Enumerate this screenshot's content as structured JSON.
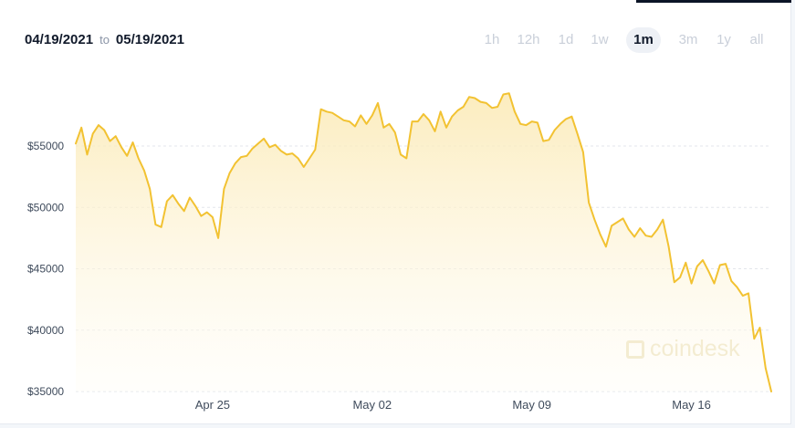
{
  "header": {
    "start_date": "04/19/2021",
    "to_label": "to",
    "end_date": "05/19/2021"
  },
  "timeframes": [
    {
      "label": "1h",
      "active": false
    },
    {
      "label": "12h",
      "active": false
    },
    {
      "label": "1d",
      "active": false
    },
    {
      "label": "1w",
      "active": false
    },
    {
      "label": "1m",
      "active": true
    },
    {
      "label": "3m",
      "active": false
    },
    {
      "label": "1y",
      "active": false
    },
    {
      "label": "all",
      "active": false
    }
  ],
  "watermark": "coindesk",
  "colors": {
    "line": "#f2c232",
    "fill_top": "#fbe9b3",
    "fill_bottom": "#fffdf6",
    "grid": "#e3e6eb"
  },
  "chart_data": {
    "type": "area",
    "title": "",
    "xlabel": "",
    "ylabel": "",
    "x_range": [
      "2021-04-19",
      "2021-05-19"
    ],
    "ylim": [
      35000,
      60000
    ],
    "y_ticks": [
      35000,
      40000,
      45000,
      50000,
      55000
    ],
    "y_tick_labels": [
      "$35000",
      "$40000",
      "$45000",
      "$50000",
      "$55000"
    ],
    "x_ticks": [
      {
        "date": "2021-04-25",
        "label": "Apr 25"
      },
      {
        "date": "2021-05-02",
        "label": "May 02"
      },
      {
        "date": "2021-05-09",
        "label": "May 09"
      },
      {
        "date": "2021-05-16",
        "label": "May 16"
      }
    ],
    "grid": true,
    "legend": "none",
    "series": [
      {
        "x": [
          "2021-04-19T00:00",
          "2021-04-19T06:00",
          "2021-04-19T12:00",
          "2021-04-19T18:00",
          "2021-04-20T00:00",
          "2021-04-20T06:00",
          "2021-04-20T12:00",
          "2021-04-20T18:00",
          "2021-04-21T00:00",
          "2021-04-21T06:00",
          "2021-04-21T12:00",
          "2021-04-21T18:00",
          "2021-04-22T00:00",
          "2021-04-22T06:00",
          "2021-04-22T12:00",
          "2021-04-22T18:00",
          "2021-04-23T00:00",
          "2021-04-23T06:00",
          "2021-04-23T12:00",
          "2021-04-23T18:00",
          "2021-04-24T00:00",
          "2021-04-24T06:00",
          "2021-04-24T12:00",
          "2021-04-24T18:00",
          "2021-04-25T00:00",
          "2021-04-25T06:00",
          "2021-04-25T12:00",
          "2021-04-25T18:00",
          "2021-04-26T00:00",
          "2021-04-26T06:00",
          "2021-04-26T12:00",
          "2021-04-26T18:00",
          "2021-04-27T00:00",
          "2021-04-27T06:00",
          "2021-04-27T12:00",
          "2021-04-27T18:00",
          "2021-04-28T00:00",
          "2021-04-28T06:00",
          "2021-04-28T12:00",
          "2021-04-28T18:00",
          "2021-04-29T00:00",
          "2021-04-29T06:00",
          "2021-04-29T12:00",
          "2021-04-29T18:00",
          "2021-04-30T00:00",
          "2021-04-30T06:00",
          "2021-04-30T12:00",
          "2021-04-30T18:00",
          "2021-05-01T00:00",
          "2021-05-01T06:00",
          "2021-05-01T12:00",
          "2021-05-01T18:00",
          "2021-05-02T00:00",
          "2021-05-02T06:00",
          "2021-05-02T12:00",
          "2021-05-02T18:00",
          "2021-05-03T00:00",
          "2021-05-03T06:00",
          "2021-05-03T12:00",
          "2021-05-03T18:00",
          "2021-05-04T00:00",
          "2021-05-04T06:00",
          "2021-05-04T12:00",
          "2021-05-04T18:00",
          "2021-05-05T00:00",
          "2021-05-05T06:00",
          "2021-05-05T12:00",
          "2021-05-05T18:00",
          "2021-05-06T00:00",
          "2021-05-06T06:00",
          "2021-05-06T12:00",
          "2021-05-06T18:00",
          "2021-05-07T00:00",
          "2021-05-07T06:00",
          "2021-05-07T12:00",
          "2021-05-07T18:00",
          "2021-05-08T00:00",
          "2021-05-08T06:00",
          "2021-05-08T12:00",
          "2021-05-08T18:00",
          "2021-05-09T00:00",
          "2021-05-09T06:00",
          "2021-05-09T12:00",
          "2021-05-09T18:00",
          "2021-05-10T00:00",
          "2021-05-10T06:00",
          "2021-05-10T12:00",
          "2021-05-10T18:00",
          "2021-05-11T00:00",
          "2021-05-11T06:00",
          "2021-05-11T12:00",
          "2021-05-11T18:00",
          "2021-05-12T00:00",
          "2021-05-12T06:00",
          "2021-05-12T12:00",
          "2021-05-12T18:00",
          "2021-05-13T00:00",
          "2021-05-13T06:00",
          "2021-05-13T12:00",
          "2021-05-13T18:00",
          "2021-05-14T00:00",
          "2021-05-14T06:00",
          "2021-05-14T12:00",
          "2021-05-14T18:00",
          "2021-05-15T00:00",
          "2021-05-15T06:00",
          "2021-05-15T12:00",
          "2021-05-15T18:00",
          "2021-05-16T00:00",
          "2021-05-16T06:00",
          "2021-05-16T12:00",
          "2021-05-16T18:00",
          "2021-05-17T00:00",
          "2021-05-17T06:00",
          "2021-05-17T12:00",
          "2021-05-17T18:00",
          "2021-05-18T00:00",
          "2021-05-18T06:00",
          "2021-05-18T12:00",
          "2021-05-18T18:00",
          "2021-05-19T00:00",
          "2021-05-19T06:00",
          "2021-05-19T12:00"
        ],
        "values": [
          55200,
          56500,
          54300,
          56000,
          56700,
          56300,
          55400,
          55800,
          54900,
          54200,
          55300,
          54000,
          53000,
          51500,
          48600,
          48400,
          50500,
          51000,
          50300,
          49700,
          50800,
          50100,
          49300,
          49600,
          49200,
          47500,
          51500,
          52800,
          53600,
          54100,
          54200,
          54800,
          55200,
          55600,
          54900,
          55100,
          54600,
          54300,
          54400,
          54000,
          53300,
          54000,
          54700,
          58000,
          57800,
          57700,
          57400,
          57100,
          57000,
          56600,
          57500,
          56800,
          57500,
          58500,
          56500,
          56800,
          56100,
          54300,
          54000,
          57000,
          57000,
          57600,
          57100,
          56200,
          57800,
          56500,
          57400,
          57900,
          58200,
          59000,
          58900,
          58600,
          58500,
          58100,
          58200,
          59200,
          59300,
          57800,
          56800,
          56700,
          57000,
          56900,
          55400,
          55500,
          56300,
          56800,
          57200,
          57400,
          56000,
          54500,
          50400,
          49000,
          47800,
          46800,
          48500,
          48800,
          49100,
          48200,
          47600,
          48300,
          47700,
          47600,
          48200,
          49000,
          46800,
          43900,
          44300,
          45500,
          43800,
          45200,
          45700,
          44800,
          43800,
          45300,
          45400,
          44000,
          43500,
          42800,
          43000,
          39300,
          40200,
          36900,
          35000
        ],
        "smoothed": false
      }
    ]
  }
}
